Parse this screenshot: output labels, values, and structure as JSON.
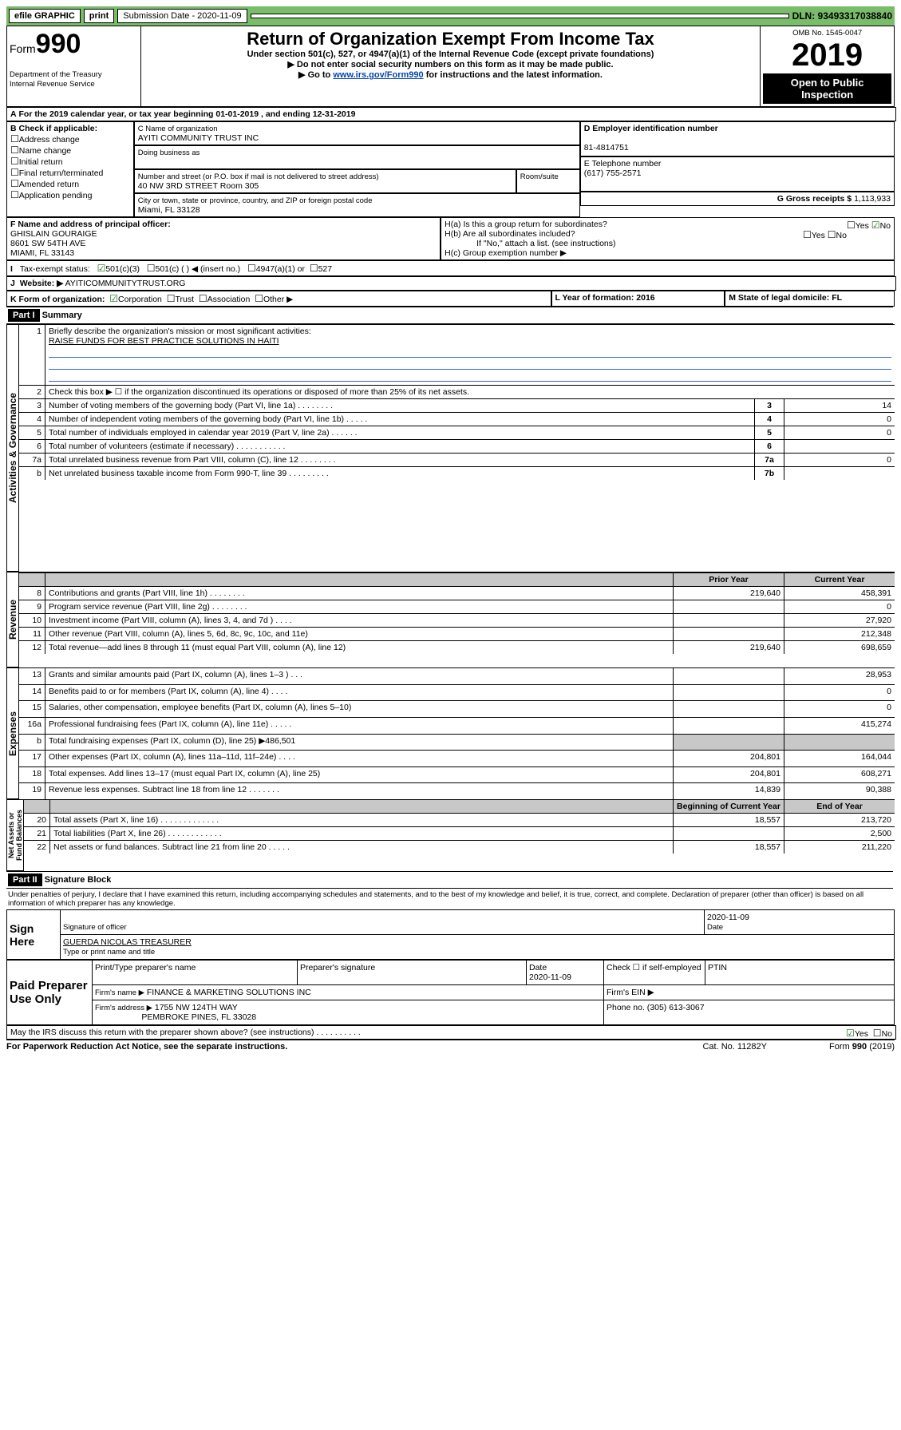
{
  "toolbar": {
    "efile": "efile GRAPHIC",
    "print": "print",
    "subdate_lbl": "Submission Date - 2020-11-09",
    "dln": "DLN: 93493317038840"
  },
  "header": {
    "form": "Form",
    "num": "990",
    "omb_lbl": "OMB No. 1545-0047",
    "year": "2019",
    "title": "Return of Organization Exempt From Income Tax",
    "sub1": "Under section 501(c), 527, or 4947(a)(1) of the Internal Revenue Code (except private foundations)",
    "sub2": "▶ Do not enter social security numbers on this form as it may be made public.",
    "sub3": "▶ Go to ",
    "sub3link": "www.irs.gov/Form990",
    "sub3b": " for instructions and the latest information.",
    "dept": "Department of the Treasury\nInternal Revenue Service",
    "open": "Open to Public Inspection"
  },
  "A": {
    "text": "For the 2019 calendar year, or tax year beginning 01-01-2019   , and ending 12-31-2019"
  },
  "B": {
    "hdr": "B Check if applicable:",
    "opts": [
      "Address change",
      "Name change",
      "Initial return",
      "Final return/terminated",
      "Amended return",
      "Application pending"
    ]
  },
  "C": {
    "namelbl": "C Name of organization",
    "name": "AYITI COMMUNITY TRUST INC",
    "dba": "Doing business as",
    "addrlbl": "Number and street (or P.O. box if mail is not delivered to street address)",
    "room": "Room/suite",
    "addr": "40 NW 3RD STREET Room 305",
    "citylbl": "City or town, state or province, country, and ZIP or foreign postal code",
    "city": "Miami, FL  33128"
  },
  "D": {
    "lbl": "D Employer identification number",
    "val": "81-4814751"
  },
  "E": {
    "lbl": "E Telephone number",
    "val": "(617) 755-2571"
  },
  "G": {
    "lbl": "G Gross receipts $ ",
    "val": "1,113,933"
  },
  "F": {
    "lbl": "F  Name and address of principal officer:",
    "name": "GHISLAIN GOURAIGE",
    "addr": "8601 SW 54TH AVE",
    "city": "MIAMI, FL  33143"
  },
  "H": {
    "a": "H(a)  Is this a group return for subordinates?",
    "yes": "Yes",
    "no": "No",
    "b": "H(b)  Are all subordinates included?",
    "note": "If \"No,\" attach a list. (see instructions)",
    "c": "H(c)  Group exemption number ▶"
  },
  "I": {
    "lbl": "Tax-exempt status:",
    "o1": "501(c)(3)",
    "o2": "501(c) (   ) ◀ (insert no.)",
    "o3": "4947(a)(1) or",
    "o4": "527"
  },
  "J": {
    "lbl": "Website: ▶",
    "val": " AYITICOMMUNITYTRUST.ORG"
  },
  "K": {
    "lbl": "K Form of organization:",
    "o1": "Corporation",
    "o2": "Trust",
    "o3": "Association",
    "o4": "Other ▶"
  },
  "L": {
    "lbl": "L Year of formation: 2016"
  },
  "M": {
    "lbl": "M State of legal domicile: FL"
  },
  "part1": {
    "bar": "Part I",
    "title": "Summary"
  },
  "sum": {
    "q1": "Briefly describe the organization's mission or most significant activities:",
    "mission": "RAISE FUNDS FOR BEST PRACTICE SOLUTIONS IN HAITI",
    "q2": "Check this box ▶ ☐  if the organization discontinued its operations or disposed of more than 25% of its net assets.",
    "rows": [
      {
        "n": "3",
        "t": "Number of voting members of the governing body (Part VI, line 1a)   .    .    .    .    .    .    .    .",
        "i": "3",
        "v": "14"
      },
      {
        "n": "4",
        "t": "Number of independent voting members of the governing body (Part VI, line 1b)   .    .    .    .    .",
        "i": "4",
        "v": "0"
      },
      {
        "n": "5",
        "t": "Total number of individuals employed in calendar year 2019 (Part V, line 2a)   .    .    .    .    .    .",
        "i": "5",
        "v": "0"
      },
      {
        "n": "6",
        "t": "Total number of volunteers (estimate if necessary)   .    .    .    .    .    .    .    .    .    .    .",
        "i": "6",
        "v": ""
      },
      {
        "n": "7a",
        "t": "Total unrelated business revenue from Part VIII, column (C), line 12   .    .    .    .    .    .    .    .",
        "i": "7a",
        "v": "0"
      },
      {
        "n": "b",
        "t": "Net unrelated business taxable income from Form 990-T, line 39   .    .    .    .    .    .    .    .    .",
        "i": "7b",
        "v": ""
      }
    ],
    "py": "Prior Year",
    "cy": "Current Year",
    "rev": [
      {
        "n": "8",
        "t": "Contributions and grants (Part VIII, line 1h)   .    .    .    .    .    .    .    .",
        "p": "219,640",
        "c": "458,391"
      },
      {
        "n": "9",
        "t": "Program service revenue (Part VIII, line 2g)   .    .    .    .    .    .    .    .",
        "p": "",
        "c": "0"
      },
      {
        "n": "10",
        "t": "Investment income (Part VIII, column (A), lines 3, 4, and 7d )   .    .    .    .",
        "p": "",
        "c": "27,920"
      },
      {
        "n": "11",
        "t": "Other revenue (Part VIII, column (A), lines 5, 6d, 8c, 9c, 10c, and 11e)",
        "p": "",
        "c": "212,348"
      },
      {
        "n": "12",
        "t": "Total revenue—add lines 8 through 11 (must equal Part VIII, column (A), line 12)",
        "p": "219,640",
        "c": "698,659"
      }
    ],
    "exp": [
      {
        "n": "13",
        "t": "Grants and similar amounts paid (Part IX, column (A), lines 1–3 )   .    .    .",
        "p": "",
        "c": "28,953"
      },
      {
        "n": "14",
        "t": "Benefits paid to or for members (Part IX, column (A), line 4)   .    .    .    .",
        "p": "",
        "c": "0"
      },
      {
        "n": "15",
        "t": "Salaries, other compensation, employee benefits (Part IX, column (A), lines 5–10)",
        "p": "",
        "c": "0"
      },
      {
        "n": "16a",
        "t": "Professional fundraising fees (Part IX, column (A), line 11e)   .    .    .    .    .",
        "p": "",
        "c": "415,274"
      },
      {
        "n": "b",
        "t": "Total fundraising expenses (Part IX, column (D), line 25) ▶486,501",
        "p": "GRAY",
        "c": "GRAY"
      },
      {
        "n": "17",
        "t": "Other expenses (Part IX, column (A), lines 11a–11d, 11f–24e)   .    .    .    .",
        "p": "204,801",
        "c": "164,044"
      },
      {
        "n": "18",
        "t": "Total expenses. Add lines 13–17 (must equal Part IX, column (A), line 25)",
        "p": "204,801",
        "c": "608,271"
      },
      {
        "n": "19",
        "t": "Revenue less expenses. Subtract line 18 from line 12   .    .    .    .    .    .    .",
        "p": "14,839",
        "c": "90,388"
      }
    ],
    "bcy": "Beginning of Current Year",
    "eoy": "End of Year",
    "net": [
      {
        "n": "20",
        "t": "Total assets (Part X, line 16)   .    .    .    .    .    .    .    .    .    .    .    .    .",
        "p": "18,557",
        "c": "213,720"
      },
      {
        "n": "21",
        "t": "Total liabilities (Part X, line 26)   .    .    .    .    .    .    .    .    .    .    .    .",
        "p": "",
        "c": "2,500"
      },
      {
        "n": "22",
        "t": "Net assets or fund balances. Subtract line 21 from line 20   .    .    .    .    .",
        "p": "18,557",
        "c": "211,220"
      }
    ]
  },
  "part2": {
    "bar": "Part II",
    "title": "Signature Block",
    "decl": "Under penalties of perjury, I declare that I have examined this return, including accompanying schedules and statements, and to the best of my knowledge and belief, it is true, correct, and complete. Declaration of preparer (other than officer) is based on all information of which preparer has any knowledge."
  },
  "sign": {
    "here": "Sign Here",
    "sig": "Signature of officer",
    "date": "2020-11-09",
    "datelbl": "Date",
    "name": "GUERDA NICOLAS  TREASURER",
    "typelbl": "Type or print name and title"
  },
  "paid": {
    "lbl": "Paid Preparer Use Only",
    "c1": "Print/Type preparer's name",
    "c2": "Preparer's signature",
    "c3": "Date",
    "c3v": "2020-11-09",
    "c4": "Check ☐ if self-employed",
    "c5": "PTIN",
    "firm": "Firm's name    ▶",
    "firmv": "FINANCE & MARKETING SOLUTIONS INC",
    "ein": "Firm's EIN ▶",
    "addr": "Firm's address ▶",
    "addrv": "1755 NW 124TH WAY",
    "city": "PEMBROKE PINES, FL  33028",
    "phone": "Phone no. (305) 613-3067"
  },
  "footer": {
    "q": "May the IRS discuss this return with the preparer shown above? (see instructions)    .    .    .    .    .    .    .    .    .    .",
    "pra": "For Paperwork Reduction Act Notice, see the separate instructions.",
    "cat": "Cat. No. 11282Y",
    "form": "Form 990 (2019)"
  }
}
